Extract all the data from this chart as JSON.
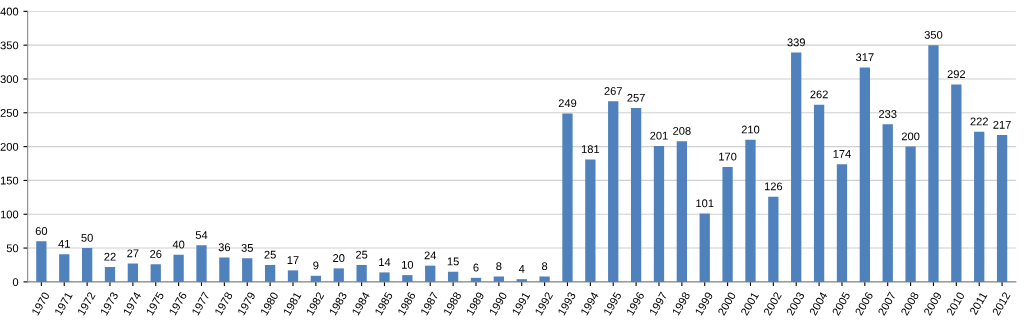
{
  "chart_data": {
    "type": "bar",
    "categories": [
      "1970",
      "1971",
      "1972",
      "1973",
      "1974",
      "1975",
      "1976",
      "1977",
      "1978",
      "1979",
      "1980",
      "1981",
      "1982",
      "1983",
      "1984",
      "1985",
      "1986",
      "1987",
      "1988",
      "1989",
      "1990",
      "1991",
      "1992",
      "1993",
      "1994",
      "1995",
      "1996",
      "1997",
      "1998",
      "1999",
      "2000",
      "2001",
      "2002",
      "2003",
      "2004",
      "2005",
      "2006",
      "2007",
      "2008",
      "2009",
      "2010",
      "2011",
      "2012"
    ],
    "values": [
      60,
      41,
      50,
      22,
      27,
      26,
      40,
      54,
      36,
      35,
      25,
      17,
      9,
      20,
      25,
      14,
      10,
      24,
      15,
      6,
      8,
      4,
      8,
      249,
      181,
      267,
      257,
      201,
      208,
      101,
      170,
      210,
      126,
      339,
      262,
      174,
      317,
      233,
      200,
      350,
      292,
      222,
      217
    ],
    "color": "#4f81bd",
    "ylim": [
      0,
      400
    ],
    "yticks": [
      0,
      50,
      100,
      150,
      200,
      250,
      300,
      350,
      400
    ],
    "grid": "y",
    "data_labels": true,
    "legend": false
  }
}
